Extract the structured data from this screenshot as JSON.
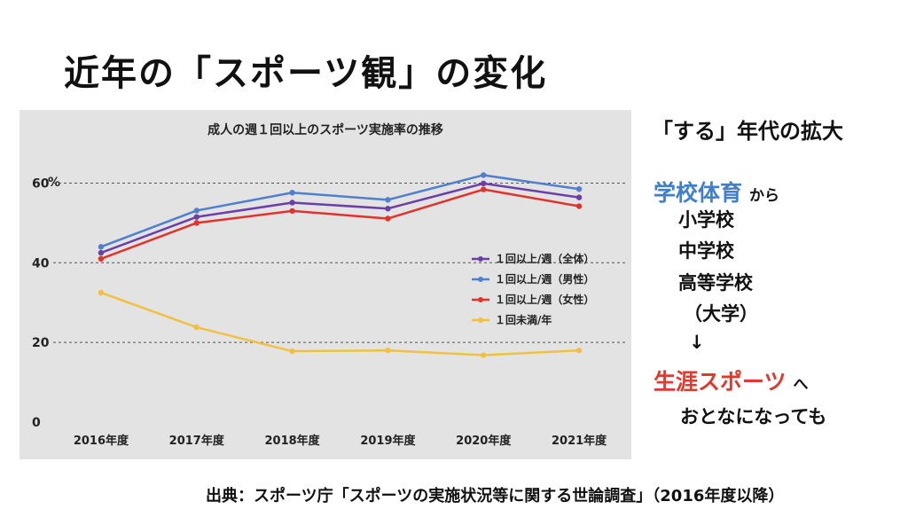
{
  "slide_title": "近年の「スポーツ観」の変化",
  "side": {
    "heading": "「する」年代の拡大",
    "from_label": "学校体育",
    "from_suffix": "から",
    "items": [
      "小学校",
      "中学校",
      "高等学校",
      "（大学）"
    ],
    "arrow": "↓",
    "to_label": "生涯スポーツ",
    "to_suffix": "へ",
    "note": "おとなになっても"
  },
  "source": "出典：スポーツ庁「スポーツの実施状況等に関する世論調査」（2016年度以降）",
  "chart_data": {
    "type": "line",
    "title": "成人の週１回以上のスポーツ実施率の推移",
    "ylabel": "%",
    "categories": [
      "2016年度",
      "2017年度",
      "2018年度",
      "2019年度",
      "2020年度",
      "2021年度"
    ],
    "yticks": [
      0,
      20,
      40,
      60
    ],
    "ylim": [
      0,
      65
    ],
    "grid": "horizontal-dashed",
    "legend": "center-right",
    "series": [
      {
        "name": "１回以上/週（全体）",
        "color": "#6a3fa8",
        "values": [
          42.5,
          51.5,
          55.1,
          53.6,
          59.9,
          56.4
        ]
      },
      {
        "name": "１回以上/週（男性）",
        "color": "#4f7fcf",
        "values": [
          44.0,
          53.1,
          57.6,
          55.8,
          62.0,
          58.5
        ]
      },
      {
        "name": "１回以上/週（女性）",
        "color": "#e2322a",
        "values": [
          41.0,
          50.0,
          53.0,
          51.1,
          58.4,
          54.2
        ]
      },
      {
        "name": "１回未満/年",
        "color": "#f2c040",
        "values": [
          32.5,
          23.8,
          17.8,
          18.0,
          16.8,
          18.0
        ]
      }
    ]
  }
}
